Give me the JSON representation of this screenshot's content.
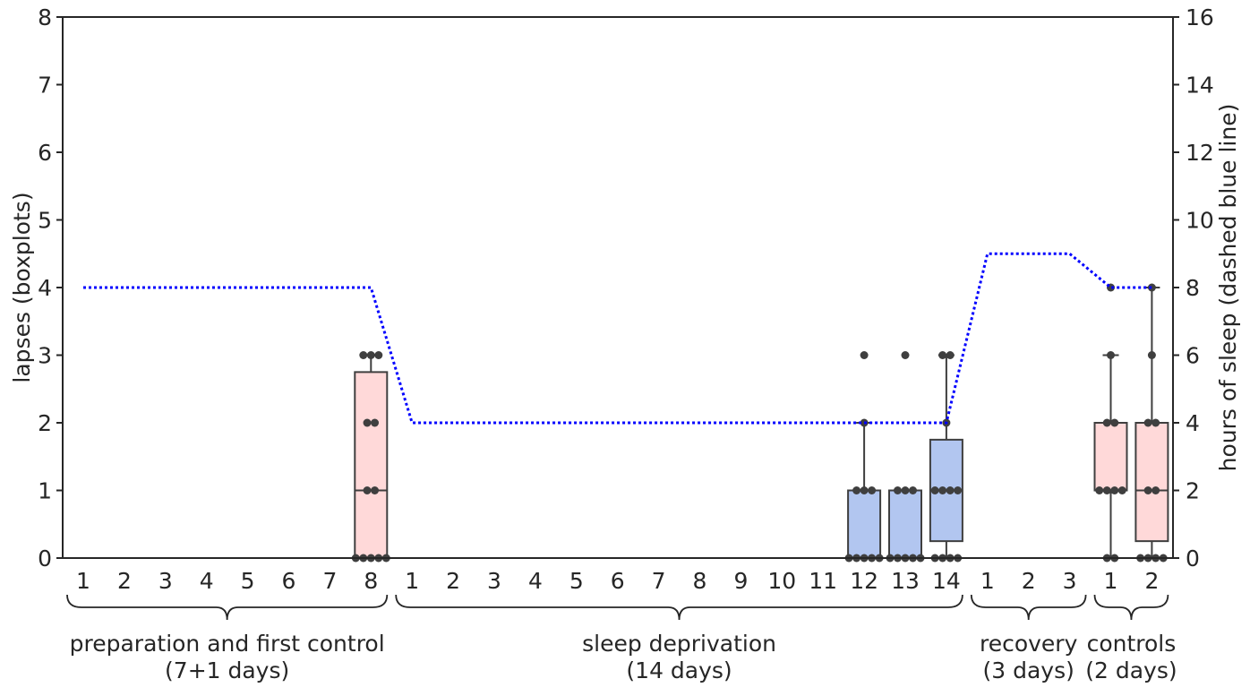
{
  "chart_data": {
    "type": "box",
    "ylabel_left": "lapses (boxplots)",
    "ylabel_right": "hours of sleep (dashed blue line)",
    "ylim_left": [
      0,
      8
    ],
    "ylim_right": [
      0,
      16
    ],
    "yticks_left": [
      "0",
      "1",
      "2",
      "3",
      "4",
      "5",
      "6",
      "7",
      "8"
    ],
    "yticks_right": [
      "0",
      "2",
      "4",
      "6",
      "8",
      "10",
      "12",
      "14",
      "16"
    ],
    "grid": false,
    "x_tick_labels": [
      "1",
      "2",
      "3",
      "4",
      "5",
      "6",
      "7",
      "8",
      "1",
      "2",
      "3",
      "4",
      "5",
      "6",
      "7",
      "8",
      "9",
      "10",
      "11",
      "12",
      "13",
      "14",
      "1",
      "2",
      "3",
      "1",
      "2"
    ],
    "groups": [
      {
        "label_line1": "preparation and first control",
        "label_line2": "(7+1 days)",
        "start": 0,
        "end": 7
      },
      {
        "label_line1": "sleep deprivation",
        "label_line2": "(14 days)",
        "start": 8,
        "end": 21
      },
      {
        "label_line1": "recovery",
        "label_line2": "(3 days)",
        "start": 22,
        "end": 24
      },
      {
        "label_line1": "controls",
        "label_line2": "(2 days)",
        "start": 25,
        "end": 26
      }
    ],
    "boxes": [
      {
        "index": 7,
        "q1": 0,
        "median": 1,
        "q3": 2.75,
        "whisker_low": 0,
        "whisker_high": 3,
        "color": "#ffd9d9",
        "points": [
          0,
          0,
          0,
          0,
          0,
          1,
          1,
          2,
          2,
          3,
          3,
          3
        ]
      },
      {
        "index": 19,
        "q1": 0,
        "median": 0,
        "q3": 1,
        "whisker_low": 0,
        "whisker_high": 2,
        "color": "#b2c6f0",
        "points": [
          0,
          0,
          0,
          0,
          0,
          1,
          1,
          1,
          2,
          3
        ]
      },
      {
        "index": 20,
        "q1": 0,
        "median": 0,
        "q3": 1,
        "whisker_low": 0,
        "whisker_high": 1,
        "color": "#b2c6f0",
        "points": [
          0,
          0,
          0,
          0,
          0,
          1,
          1,
          1,
          3
        ]
      },
      {
        "index": 21,
        "q1": 0.25,
        "median": 1,
        "q3": 1.75,
        "whisker_low": 0,
        "whisker_high": 3,
        "color": "#b2c6f0",
        "points": [
          0,
          0,
          0,
          0,
          1,
          1,
          1,
          1,
          2,
          3,
          3
        ]
      },
      {
        "index": 25,
        "q1": 1,
        "median": 1,
        "q3": 2,
        "whisker_low": 0,
        "whisker_high": 3,
        "color": "#ffd9d9",
        "points": [
          0,
          0,
          1,
          1,
          1,
          1,
          2,
          2,
          3,
          4
        ]
      },
      {
        "index": 26,
        "q1": 0.25,
        "median": 1,
        "q3": 2,
        "whisker_low": 0,
        "whisker_high": 4,
        "color": "#ffd9d9",
        "points": [
          0,
          0,
          0,
          0,
          1,
          1,
          2,
          2,
          3,
          4
        ]
      }
    ],
    "sleep_hours": {
      "color": "#0000ff",
      "style": "dotted",
      "values": [
        8,
        8,
        8,
        8,
        8,
        8,
        8,
        8,
        4,
        4,
        4,
        4,
        4,
        4,
        4,
        4,
        4,
        4,
        4,
        4,
        4,
        4,
        9,
        9,
        9,
        8,
        8
      ]
    }
  }
}
